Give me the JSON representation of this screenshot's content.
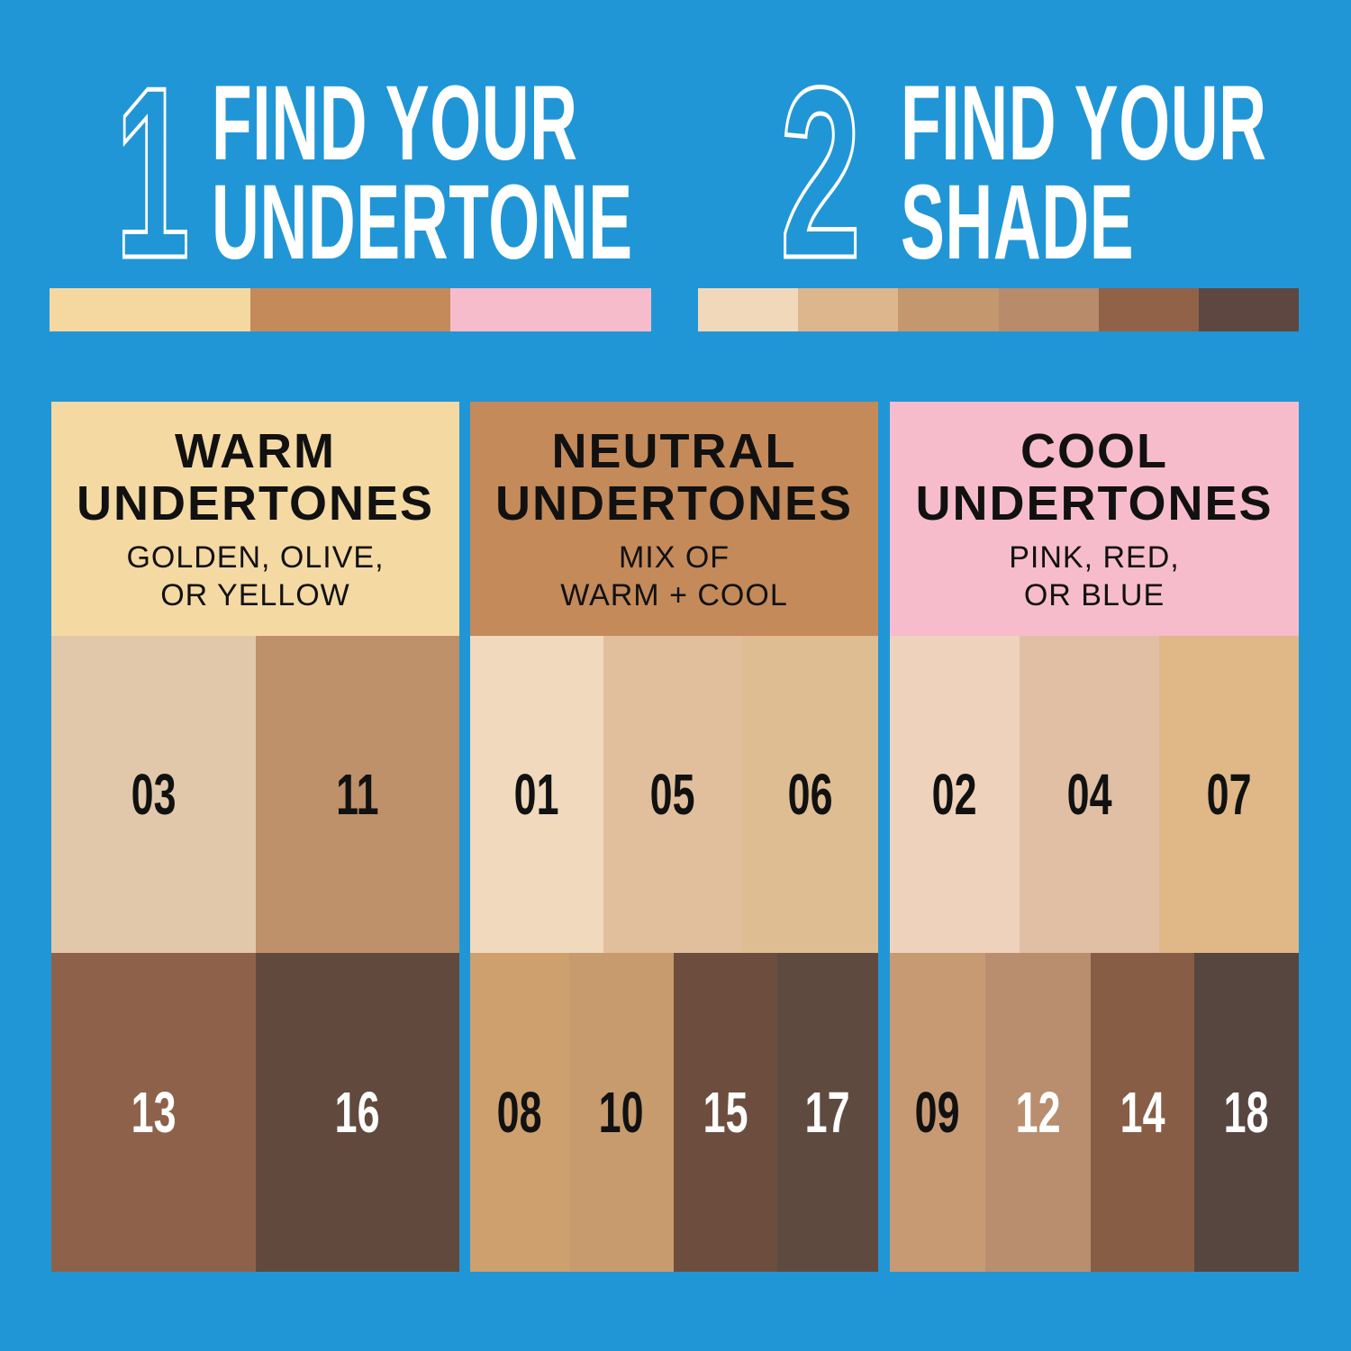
{
  "background_color": "#2196d6",
  "step1": {
    "number": "1",
    "line1": "FIND YOUR",
    "line2": "UNDERTONE",
    "bar_colors": [
      "#f5d8a0",
      "#f5d8a0",
      "#c48a5a",
      "#c48a5a",
      "#f7bccb",
      "#f7bccb"
    ]
  },
  "step2": {
    "number": "2",
    "line1": "FIND YOUR",
    "line2": "SHADE",
    "bar_colors": [
      "#f2d8bb",
      "#ddb68e",
      "#c4976f",
      "#b88b6b",
      "#916248",
      "#5e4740"
    ]
  },
  "panels": [
    {
      "title1": "WARM",
      "title2": "UNDERTONES",
      "sub1": "GOLDEN, OLIVE,",
      "sub2": "OR YELLOW",
      "color": "#f5d9a3",
      "rows": [
        [
          {
            "shade": "03",
            "color": "#e2c8ab",
            "text": "#111"
          },
          {
            "shade": "11",
            "color": "#be916a",
            "text": "#111"
          }
        ],
        [
          {
            "shade": "13",
            "color": "#8e614a",
            "text": "#fff"
          },
          {
            "shade": "16",
            "color": "#61493d",
            "text": "#fff"
          }
        ]
      ]
    },
    {
      "title1": "NEUTRAL",
      "title2": "UNDERTONES",
      "sub1": "MIX OF",
      "sub2": "WARM + COOL",
      "color": "#c48a5a",
      "rows": [
        [
          {
            "shade": "01",
            "color": "#f0d9bd",
            "text": "#111"
          },
          {
            "shade": "05",
            "color": "#e1bf9d",
            "text": "#111"
          },
          {
            "shade": "06",
            "color": "#dfbd92",
            "text": "#111"
          }
        ],
        [
          {
            "shade": "08",
            "color": "#cda06d",
            "text": "#111"
          },
          {
            "shade": "10",
            "color": "#c79b6d",
            "text": "#111"
          },
          {
            "shade": "15",
            "color": "#6d4e3e",
            "text": "#fff"
          },
          {
            "shade": "17",
            "color": "#5f4a40",
            "text": "#fff"
          }
        ]
      ]
    },
    {
      "title1": "COOL",
      "title2": "UNDERTONES",
      "sub1": "PINK, RED,",
      "sub2": "OR BLUE",
      "color": "#f7bccc",
      "rows": [
        [
          {
            "shade": "02",
            "color": "#efd2bb",
            "text": "#111"
          },
          {
            "shade": "04",
            "color": "#e0bfa5",
            "text": "#111"
          },
          {
            "shade": "07",
            "color": "#e0b787",
            "text": "#111"
          }
        ],
        [
          {
            "shade": "09",
            "color": "#c89a74",
            "text": "#111"
          },
          {
            "shade": "12",
            "color": "#b88e6e",
            "text": "#fff"
          },
          {
            "shade": "14",
            "color": "#875d45",
            "text": "#fff"
          },
          {
            "shade": "18",
            "color": "#574540",
            "text": "#fff"
          }
        ]
      ]
    }
  ]
}
